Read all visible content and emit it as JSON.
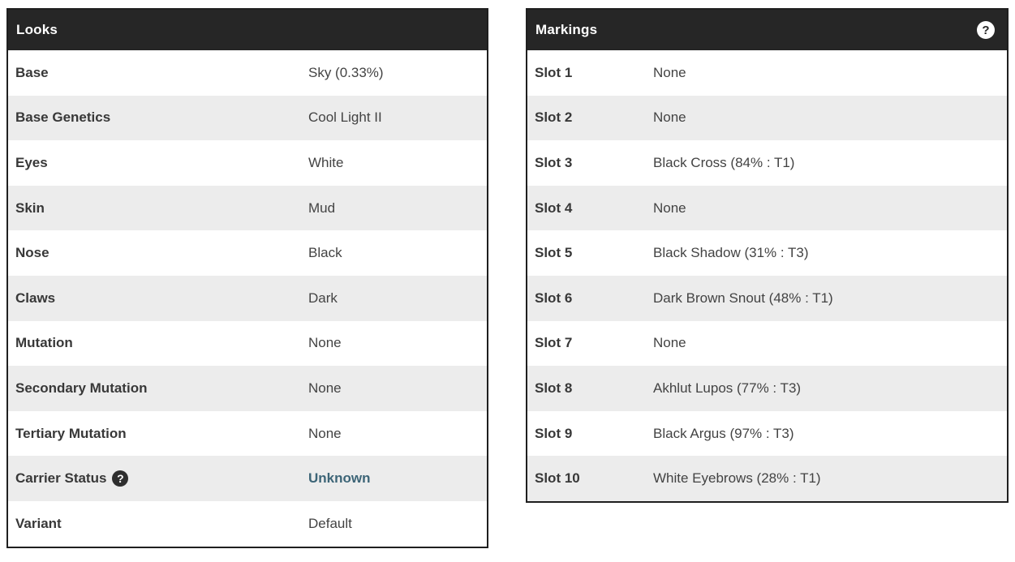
{
  "colors": {
    "header_bg": "#262626",
    "panel_border": "#1f1f1f",
    "stripe": "#ececec",
    "label_text": "#383838",
    "value_text": "#434343",
    "link_text": "#3d6577"
  },
  "icons": {
    "question_glyph": "?"
  },
  "looks": {
    "title": "Looks",
    "rows": [
      {
        "label": "Base",
        "value": "Sky (0.33%)"
      },
      {
        "label": "Base Genetics",
        "value": "Cool Light II"
      },
      {
        "label": "Eyes",
        "value": "White"
      },
      {
        "label": "Skin",
        "value": "Mud"
      },
      {
        "label": "Nose",
        "value": "Black"
      },
      {
        "label": "Claws",
        "value": "Dark"
      },
      {
        "label": "Mutation",
        "value": "None"
      },
      {
        "label": "Secondary Mutation",
        "value": "None"
      },
      {
        "label": "Tertiary Mutation",
        "value": "None"
      },
      {
        "label": "Carrier Status",
        "value": "Unknown"
      },
      {
        "label": "Variant",
        "value": "Default"
      }
    ]
  },
  "markings": {
    "title": "Markings",
    "rows": [
      {
        "label": "Slot 1",
        "value": "None"
      },
      {
        "label": "Slot 2",
        "value": "None"
      },
      {
        "label": "Slot 3",
        "value": "Black Cross (84% : T1)"
      },
      {
        "label": "Slot 4",
        "value": "None"
      },
      {
        "label": "Slot 5",
        "value": "Black Shadow (31% : T3)"
      },
      {
        "label": "Slot 6",
        "value": "Dark Brown Snout (48% : T1)"
      },
      {
        "label": "Slot 7",
        "value": "None"
      },
      {
        "label": "Slot 8",
        "value": "Akhlut Lupos (77% : T3)"
      },
      {
        "label": "Slot 9",
        "value": "Black Argus (97% : T3)"
      },
      {
        "label": "Slot 10",
        "value": "White Eyebrows (28% : T1)"
      }
    ]
  }
}
